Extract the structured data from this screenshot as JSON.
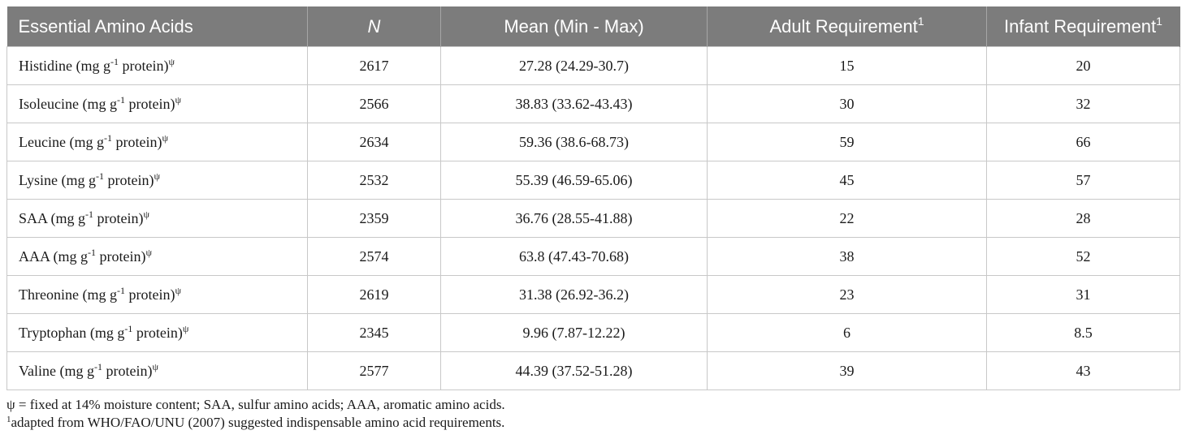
{
  "table": {
    "headers": {
      "col1": "Essential Amino Acids",
      "col2": "N",
      "col3": "Mean (Min - Max)",
      "col4": "Adult Requirement",
      "col4_sup": "1",
      "col5": "Infant Requirement",
      "col5_sup": "1"
    },
    "unit": {
      "pre": "(mg g",
      "exp": "-1",
      "post": " protein)",
      "sym": "ψ"
    },
    "rows": [
      {
        "name": "Histidine",
        "n": "2617",
        "mean": "27.28 (24.29-30.7)",
        "adult": "15",
        "infant": "20"
      },
      {
        "name": "Isoleucine",
        "n": "2566",
        "mean": "38.83 (33.62-43.43)",
        "adult": "30",
        "infant": "32"
      },
      {
        "name": "Leucine",
        "n": "2634",
        "mean": "59.36 (38.6-68.73)",
        "adult": "59",
        "infant": "66"
      },
      {
        "name": "Lysine",
        "n": "2532",
        "mean": "55.39 (46.59-65.06)",
        "adult": "45",
        "infant": "57"
      },
      {
        "name": "SAA",
        "n": "2359",
        "mean": "36.76 (28.55-41.88)",
        "adult": "22",
        "infant": "28"
      },
      {
        "name": "AAA",
        "n": "2574",
        "mean": "63.8 (47.43-70.68)",
        "adult": "38",
        "infant": "52"
      },
      {
        "name": "Threonine",
        "n": "2619",
        "mean": "31.38 (26.92-36.2)",
        "adult": "23",
        "infant": "31"
      },
      {
        "name": "Tryptophan",
        "n": "2345",
        "mean": "9.96 (7.87-12.22)",
        "adult": "6",
        "infant": "8.5"
      },
      {
        "name": "Valine",
        "n": "2577",
        "mean": "44.39 (37.52-51.28)",
        "adult": "39",
        "infant": "43"
      }
    ]
  },
  "footnotes": {
    "note1": "ψ = fixed at 14% moisture content; SAA, sulfur amino acids; AAA, aromatic amino acids.",
    "note2_sup": "1",
    "note2": "adapted from WHO/FAO/UNU (2007) suggested indispensable amino acid requirements."
  },
  "colors": {
    "header_bg": "#7c7c7c",
    "header_text": "#ffffff",
    "border": "#c8c8c8"
  }
}
